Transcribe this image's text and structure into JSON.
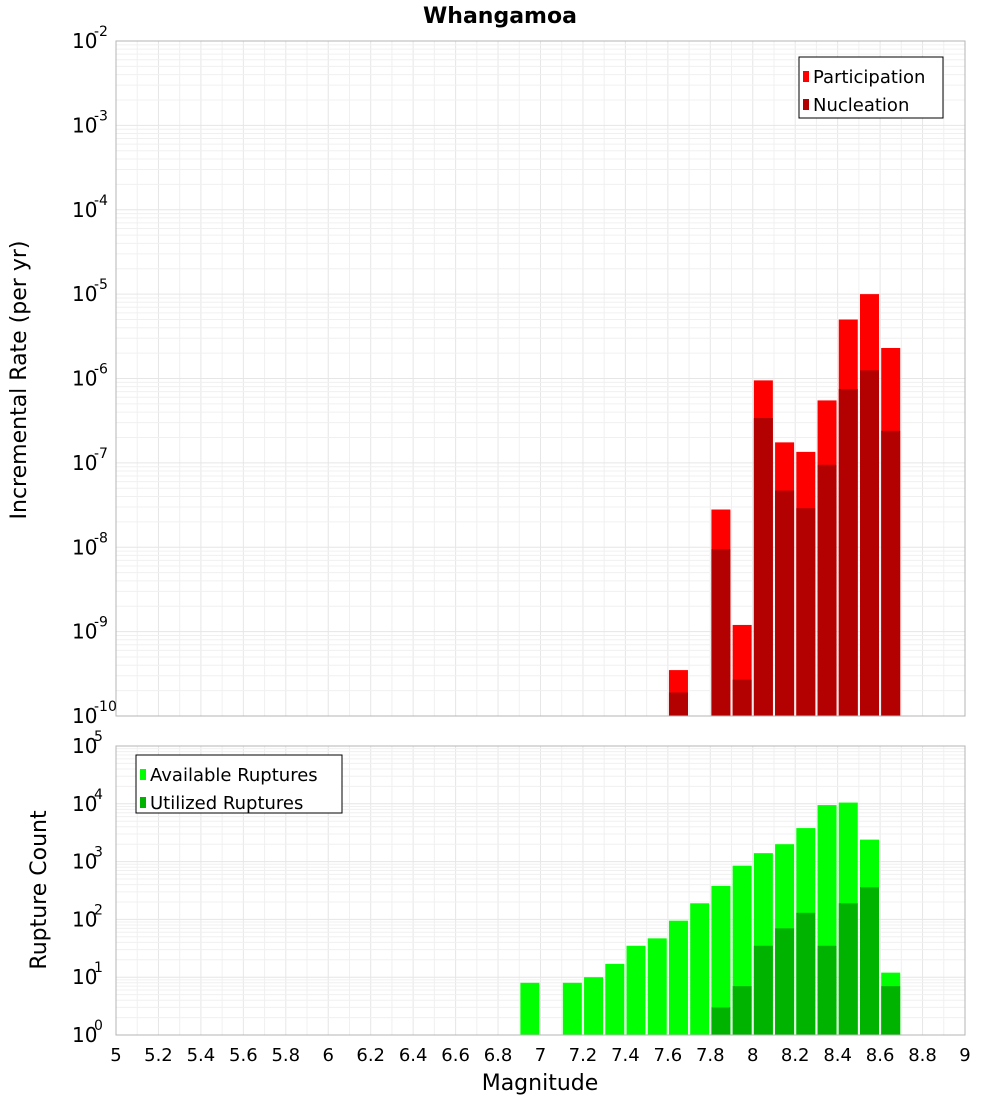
{
  "title": "Whangamoa",
  "xlabel": "Magnitude",
  "x_ticks": [
    "5",
    "5.2",
    "5.4",
    "5.6",
    "5.8",
    "6",
    "6.2",
    "6.4",
    "6.6",
    "6.8",
    "7",
    "7.2",
    "7.4",
    "7.6",
    "7.8",
    "8",
    "8.2",
    "8.4",
    "8.6",
    "8.8",
    "9"
  ],
  "colors": {
    "participation": "#ff0000",
    "nucleation": "#b30000",
    "available": "#00ff00",
    "utilized": "#00b300"
  },
  "chart_data": [
    {
      "type": "bar",
      "title": "Whangamoa",
      "xlabel": "Magnitude",
      "ylabel": "Incremental Rate (per yr)",
      "yscale": "log",
      "xlim": [
        5,
        9
      ],
      "ylim": [
        1e-10,
        0.01
      ],
      "y_tick_exponents": [
        "-10",
        "-9",
        "-8",
        "-7",
        "-6",
        "-5",
        "-4",
        "-3",
        "-2"
      ],
      "legend": "top-right",
      "series": [
        {
          "name": "Participation",
          "x": [
            7.65,
            7.85,
            7.95,
            8.05,
            8.15,
            8.25,
            8.35,
            8.45,
            8.55,
            8.65
          ],
          "values": [
            3.5e-10,
            2.8e-08,
            1.2e-09,
            9.5e-07,
            1.75e-07,
            1.35e-07,
            5.5e-07,
            5e-06,
            1e-05,
            2.3e-06
          ]
        },
        {
          "name": "Nucleation",
          "x": [
            7.65,
            7.85,
            7.95,
            8.05,
            8.15,
            8.25,
            8.35,
            8.45,
            8.55,
            8.65
          ],
          "values": [
            1.9e-10,
            9.5e-09,
            2.7e-10,
            3.4e-07,
            4.7e-08,
            2.9e-08,
            9.5e-08,
            7.5e-07,
            1.25e-06,
            2.4e-07
          ]
        }
      ]
    },
    {
      "type": "bar",
      "xlabel": "Magnitude",
      "ylabel": "Rupture Count",
      "yscale": "log",
      "xlim": [
        5,
        9
      ],
      "ylim": [
        1,
        100000
      ],
      "y_tick_exponents": [
        "0",
        "1",
        "2",
        "3",
        "4",
        "5"
      ],
      "legend": "top-left",
      "series": [
        {
          "name": "Available Ruptures",
          "x": [
            6.95,
            7.15,
            7.25,
            7.35,
            7.45,
            7.55,
            7.65,
            7.75,
            7.85,
            7.95,
            8.05,
            8.15,
            8.25,
            8.35,
            8.45,
            8.55,
            8.65
          ],
          "values": [
            8,
            8,
            10,
            17,
            35,
            47,
            95,
            190,
            380,
            850,
            1400,
            2000,
            3800,
            9500,
            10500,
            2400,
            12
          ]
        },
        {
          "name": "Utilized Ruptures",
          "x": [
            7.65,
            7.75,
            7.85,
            7.95,
            8.05,
            8.15,
            8.25,
            8.35,
            8.45,
            8.55,
            8.65
          ],
          "values": [
            1,
            1,
            3,
            7,
            35,
            70,
            130,
            35,
            190,
            360,
            7
          ]
        }
      ]
    }
  ]
}
